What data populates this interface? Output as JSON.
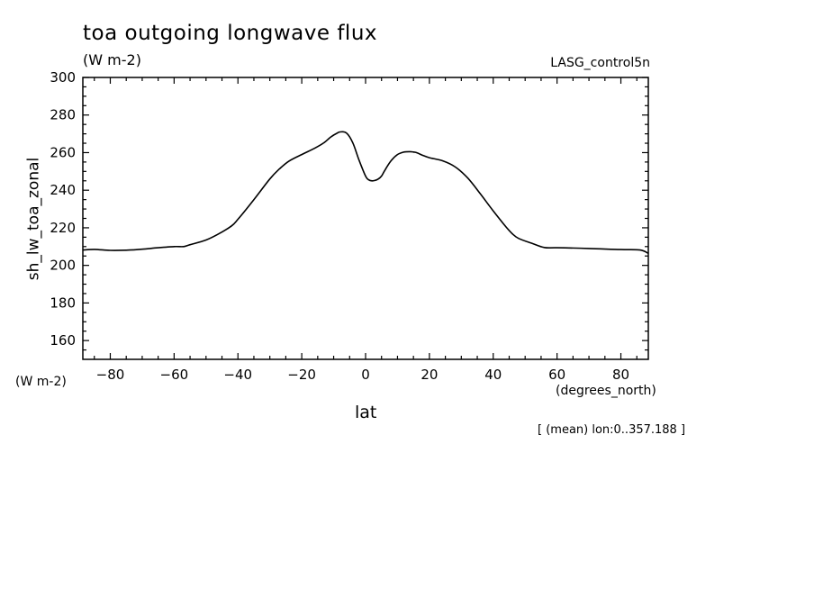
{
  "chart_data": {
    "type": "line",
    "title": "toa outgoing longwave flux",
    "units": "(W m-2)",
    "run_label": "LASG_control5n",
    "xlabel": "lat",
    "x_units": "(degrees_north)",
    "ylabel": "sh_lw_toa_zonal",
    "y_units": "(W m-2)",
    "note": "[ (mean) lon:0..357.188 ]",
    "xlim": [
      -88.6,
      88.6
    ],
    "ylim": [
      150,
      300
    ],
    "x_ticks": [
      -80,
      -60,
      -40,
      -20,
      0,
      20,
      40,
      60,
      80
    ],
    "y_ticks": [
      160,
      180,
      200,
      220,
      240,
      260,
      280,
      300
    ],
    "grid": false,
    "series": [
      {
        "x": [
          -88.6,
          -85,
          -80,
          -75,
          -70,
          -65,
          -60,
          -57,
          -55,
          -50,
          -46,
          -42,
          -40,
          -35,
          -30,
          -27,
          -24,
          -20,
          -16,
          -13,
          -11,
          -9,
          -8,
          -6,
          -4,
          -2,
          0,
          1,
          2,
          3,
          4,
          5,
          6,
          8,
          10,
          12,
          14,
          15,
          16,
          18,
          20,
          24,
          28,
          32,
          36,
          40,
          44,
          46,
          48,
          52,
          56,
          60,
          70,
          80,
          86,
          88.6
        ],
        "y": [
          208.2,
          208.5,
          208,
          208.1,
          208.6,
          209.4,
          210,
          210,
          211,
          213.5,
          216.8,
          221,
          224.5,
          235,
          246,
          251.3,
          255.5,
          259,
          262.3,
          265.3,
          268.2,
          270.3,
          271,
          270.5,
          265.2,
          255.8,
          247.5,
          245.5,
          245,
          245.2,
          246,
          247.5,
          250.5,
          255.7,
          259,
          260.3,
          260.5,
          260.3,
          260,
          258.5,
          257.3,
          255.7,
          252.5,
          246.5,
          238,
          229,
          220.5,
          216.8,
          214.3,
          211.8,
          209.5,
          209.4,
          209,
          208.4,
          208.2,
          206.4
        ]
      }
    ]
  }
}
